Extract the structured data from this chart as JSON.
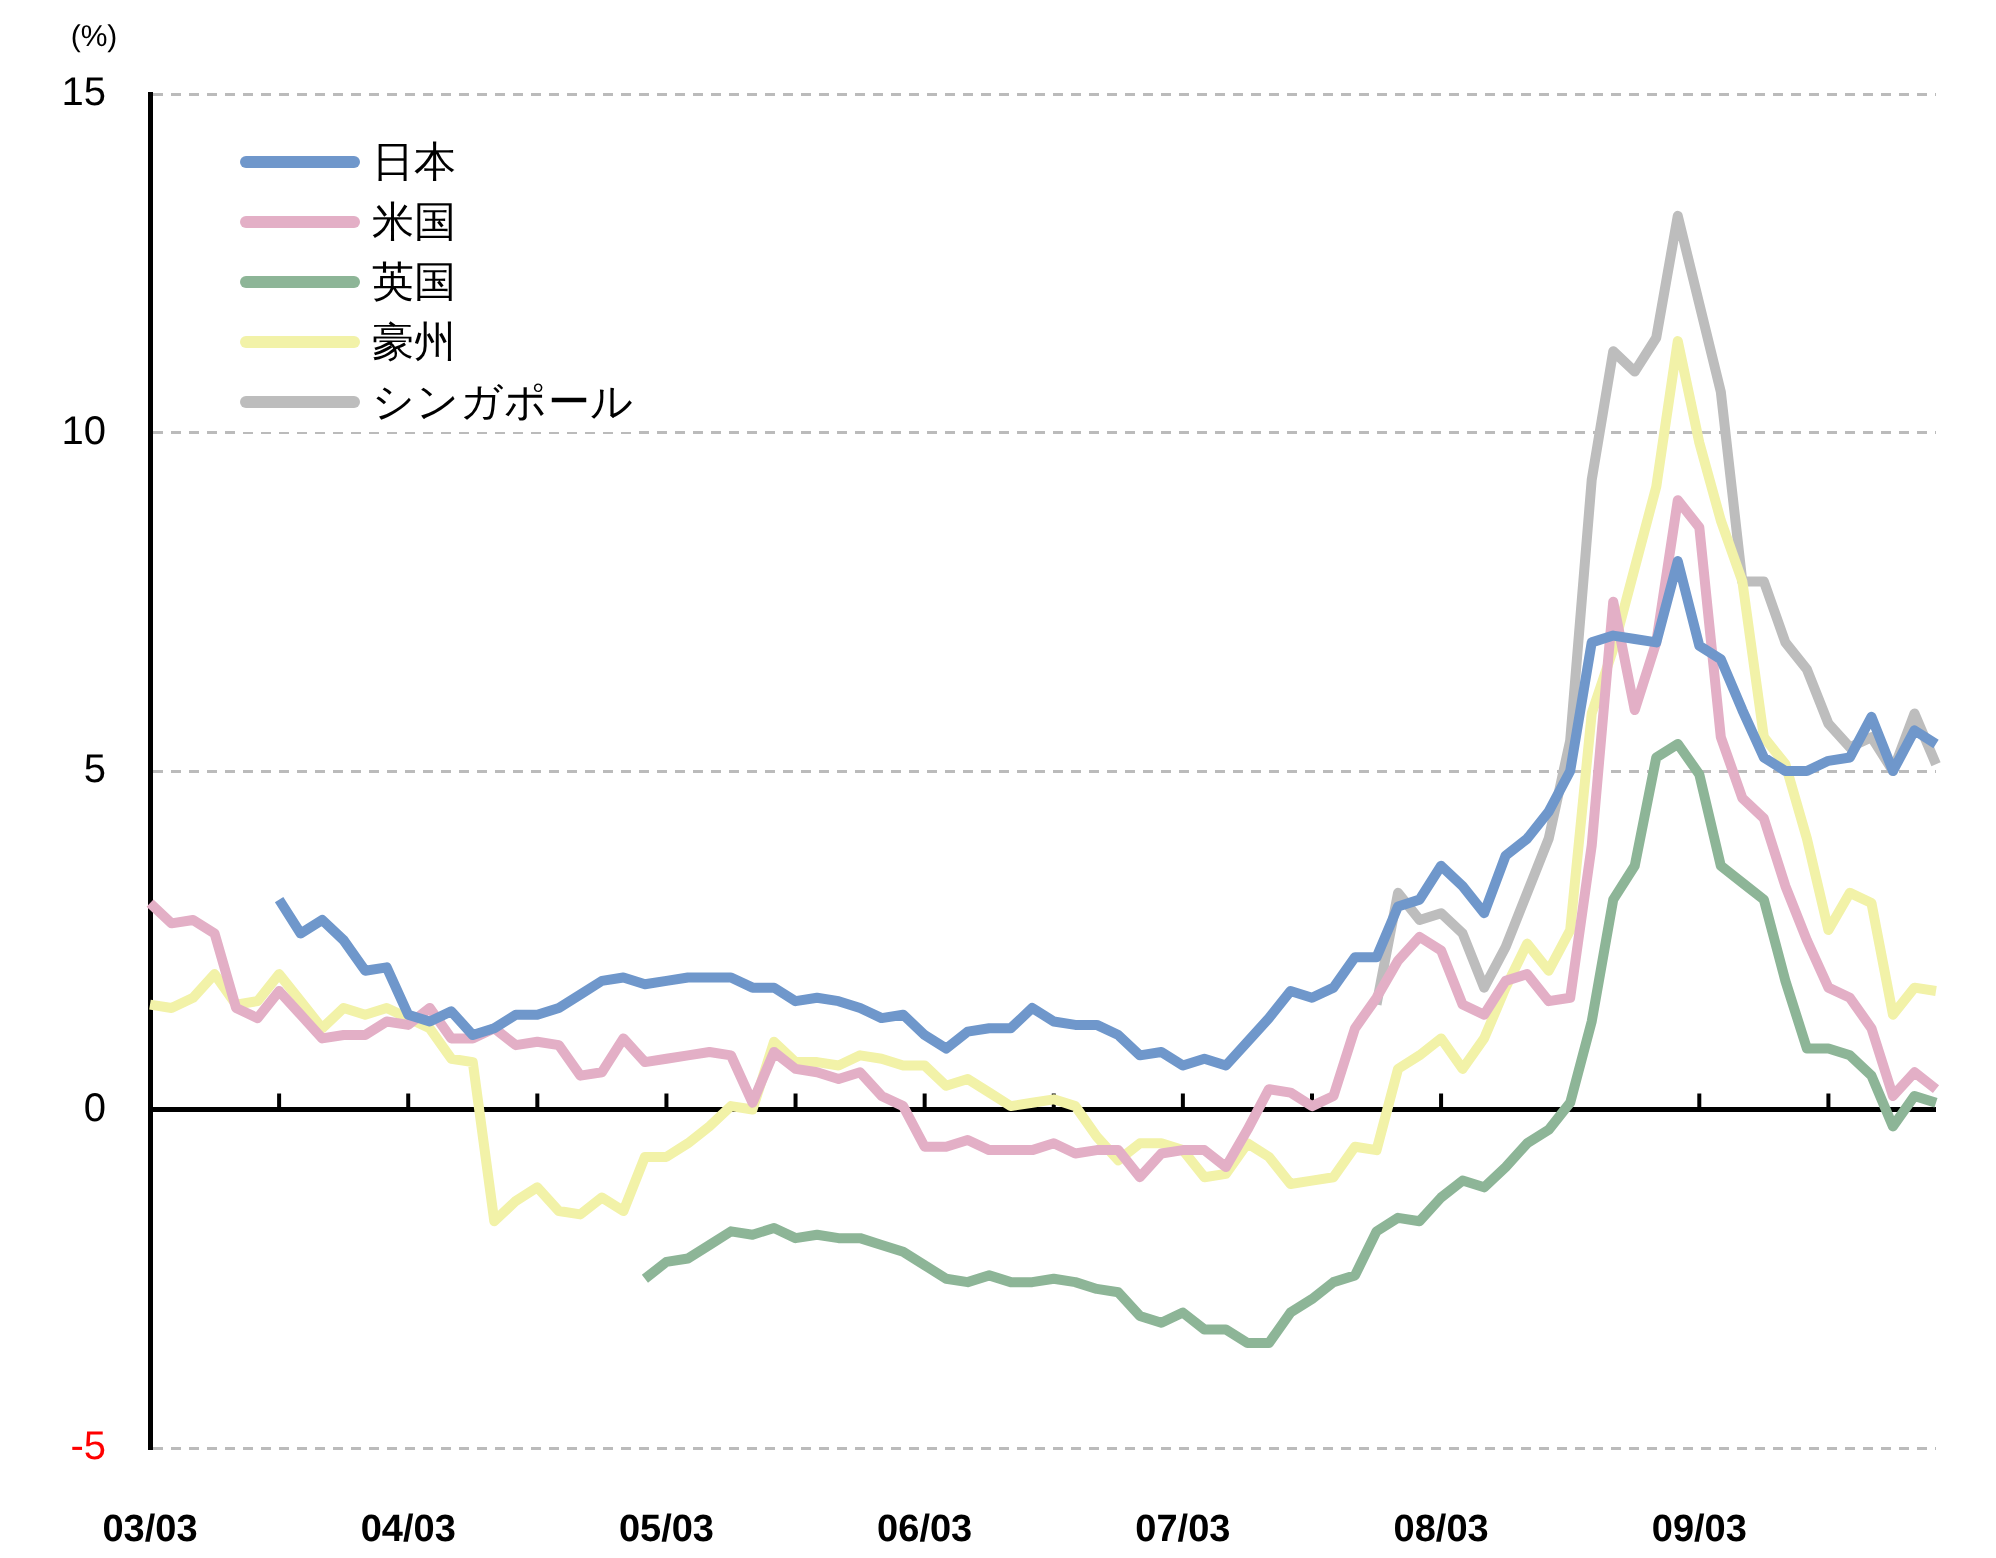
{
  "chart_data": {
    "type": "line",
    "ylabel": "(%)",
    "categories": [
      "03/03",
      null,
      null,
      null,
      null,
      null,
      null,
      null,
      null,
      null,
      null,
      null,
      "04/03",
      null,
      null,
      null,
      null,
      null,
      null,
      null,
      null,
      null,
      null,
      null,
      "05/03",
      null,
      null,
      null,
      null,
      null,
      null,
      null,
      null,
      null,
      null,
      null,
      "06/03",
      null,
      null,
      null,
      null,
      null,
      null,
      null,
      null,
      null,
      null,
      null,
      "07/03",
      null,
      null,
      null,
      null,
      null,
      null,
      null,
      null,
      null,
      null,
      null,
      "08/03",
      null,
      null,
      null,
      null,
      null,
      null,
      null,
      null,
      null,
      null,
      null,
      "09/03",
      null,
      null,
      null,
      null,
      null,
      null,
      null,
      null,
      null,
      null,
      null
    ],
    "series": [
      {
        "name": "日本",
        "color": "#6f97cb",
        "values": [
          null,
          null,
          null,
          null,
          null,
          null,
          3.1,
          2.6,
          2.8,
          2.5,
          2.05,
          2.1,
          1.4,
          1.3,
          1.45,
          1.1,
          1.2,
          1.4,
          1.4,
          1.5,
          1.7,
          1.9,
          1.95,
          1.85,
          1.9,
          1.95,
          1.95,
          1.95,
          1.8,
          1.8,
          1.6,
          1.65,
          1.6,
          1.5,
          1.35,
          1.4,
          1.1,
          0.9,
          1.15,
          1.2,
          1.2,
          1.5,
          1.3,
          1.25,
          1.25,
          1.1,
          0.8,
          0.85,
          0.65,
          0.75,
          0.65,
          1.0,
          1.35,
          1.75,
          1.65,
          1.8,
          2.25,
          2.25,
          3.0,
          3.1,
          3.6,
          3.3,
          2.9,
          3.75,
          4.0,
          4.4,
          5.0,
          6.9,
          7.0,
          6.95,
          6.9,
          8.1,
          6.85,
          6.65,
          5.9,
          5.2,
          5.0,
          5.0,
          5.15,
          5.2,
          5.8,
          5.0,
          5.6,
          5.4
        ]
      },
      {
        "name": "米国",
        "color": "#e3afc6",
        "values": [
          3.05,
          2.75,
          2.8,
          2.6,
          1.5,
          1.35,
          1.75,
          1.4,
          1.05,
          1.1,
          1.1,
          1.3,
          1.25,
          1.5,
          1.05,
          1.05,
          1.2,
          0.95,
          1.0,
          0.95,
          0.5,
          0.55,
          1.05,
          0.7,
          0.75,
          0.8,
          0.85,
          0.8,
          0.1,
          0.85,
          0.6,
          0.55,
          0.45,
          0.55,
          0.2,
          0.05,
          -0.55,
          -0.55,
          -0.45,
          -0.6,
          -0.6,
          -0.6,
          -0.5,
          -0.65,
          -0.6,
          -0.6,
          -1.0,
          -0.65,
          -0.6,
          -0.6,
          -0.85,
          -0.3,
          0.3,
          0.25,
          0.05,
          0.2,
          1.2,
          1.65,
          2.2,
          2.55,
          2.35,
          1.55,
          1.4,
          1.9,
          2.0,
          1.6,
          1.65,
          3.9,
          7.5,
          5.9,
          6.9,
          9.0,
          8.6,
          5.5,
          4.6,
          4.3,
          3.3,
          2.5,
          1.8,
          1.65,
          1.2,
          0.2,
          0.55,
          0.3
        ]
      },
      {
        "name": "英国",
        "color": "#8db597",
        "values": [
          null,
          null,
          null,
          null,
          null,
          null,
          null,
          null,
          null,
          null,
          null,
          null,
          null,
          null,
          null,
          null,
          null,
          null,
          null,
          null,
          null,
          null,
          null,
          -2.5,
          -2.25,
          -2.2,
          -2.0,
          -1.8,
          -1.85,
          -1.75,
          -1.9,
          -1.85,
          -1.9,
          -1.9,
          -2.0,
          -2.1,
          -2.3,
          -2.5,
          -2.55,
          -2.45,
          -2.55,
          -2.55,
          -2.5,
          -2.55,
          -2.65,
          -2.7,
          -3.05,
          -3.15,
          -3.0,
          -3.25,
          -3.25,
          -3.45,
          -3.45,
          -3.0,
          -2.8,
          -2.55,
          -2.45,
          -1.8,
          -1.6,
          -1.65,
          -1.3,
          -1.05,
          -1.15,
          -0.85,
          -0.5,
          -0.3,
          0.1,
          1.3,
          3.1,
          3.6,
          5.2,
          5.4,
          4.95,
          3.6,
          3.35,
          3.1,
          1.9,
          0.9,
          0.9,
          0.8,
          0.5,
          -0.25,
          0.2,
          0.1
        ]
      },
      {
        "name": "豪州",
        "color": "#f2f2a8",
        "values": [
          1.55,
          1.5,
          1.65,
          2.0,
          1.55,
          1.6,
          2.0,
          1.6,
          1.2,
          1.5,
          1.4,
          1.5,
          1.35,
          1.2,
          0.75,
          0.7,
          -1.65,
          -1.35,
          -1.15,
          -1.5,
          -1.55,
          -1.3,
          -1.5,
          -0.7,
          -0.7,
          -0.5,
          -0.25,
          0.05,
          0.0,
          1.0,
          0.7,
          0.7,
          0.65,
          0.8,
          0.75,
          0.65,
          0.65,
          0.35,
          0.45,
          0.25,
          0.05,
          0.1,
          0.15,
          0.05,
          -0.4,
          -0.75,
          -0.5,
          -0.5,
          -0.6,
          -1.0,
          -0.95,
          -0.5,
          -0.7,
          -1.1,
          -1.05,
          -1.0,
          -0.55,
          -0.6,
          0.6,
          0.8,
          1.05,
          0.6,
          1.05,
          1.8,
          2.45,
          2.05,
          2.65,
          5.85,
          6.8,
          8.0,
          9.2,
          11.35,
          9.85,
          8.7,
          7.8,
          5.5,
          5.1,
          4.0,
          2.65,
          3.2,
          3.05,
          1.4,
          1.8,
          1.75
        ]
      },
      {
        "name": "シンガポール",
        "color": "#bdbdbd",
        "values": [
          null,
          null,
          null,
          null,
          null,
          null,
          null,
          null,
          null,
          null,
          null,
          null,
          null,
          null,
          null,
          null,
          null,
          null,
          null,
          null,
          null,
          null,
          null,
          null,
          null,
          null,
          null,
          null,
          null,
          null,
          null,
          null,
          null,
          null,
          null,
          null,
          null,
          null,
          null,
          null,
          null,
          null,
          null,
          null,
          null,
          null,
          null,
          null,
          null,
          null,
          null,
          null,
          null,
          null,
          null,
          null,
          null,
          1.55,
          3.2,
          2.8,
          2.9,
          2.6,
          1.8,
          2.4,
          3.2,
          4.0,
          5.45,
          9.3,
          11.2,
          10.9,
          11.4,
          13.2,
          11.9,
          10.6,
          7.8,
          7.8,
          6.9,
          6.5,
          5.7,
          5.35,
          5.5,
          5.0,
          5.85,
          5.1
        ]
      }
    ],
    "ylim": [
      -5,
      15
    ],
    "yticks": [
      -5,
      0,
      5,
      10,
      15
    ],
    "grid": "y",
    "legend": "top left",
    "marker": "none",
    "line_style": "solid",
    "ref_lines": [
      {
        "axis": "y",
        "value": 0,
        "color": "#000000",
        "line_style": "solid"
      }
    ]
  }
}
